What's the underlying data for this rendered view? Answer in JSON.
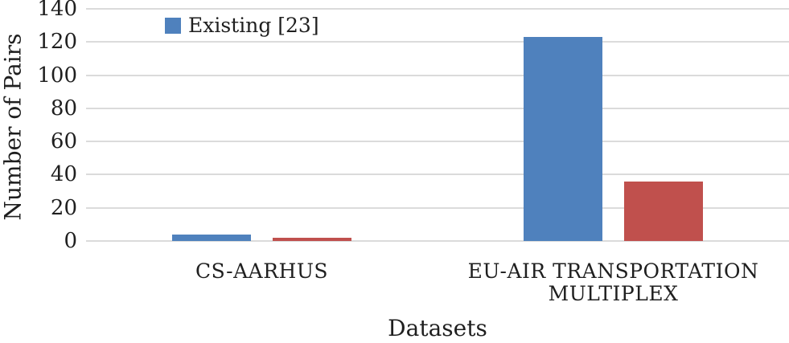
{
  "figure": {
    "background": "#FFFFFF",
    "text_color": "#1F1F1F",
    "gridline_color": "#DBDBDB"
  },
  "chart_data": {
    "type": "bar",
    "xlabel": "Datasets",
    "ylabel": "Number of Pairs",
    "categories": [
      "CS-AARHUS",
      "EU-AIR TRANSPORTATION MULTIPLEX"
    ],
    "series": [
      {
        "name": "Existing [23]",
        "color": "#4F81BD",
        "values": [
          4,
          123
        ],
        "in_legend": true
      },
      {
        "name": "",
        "color": "#C0504D",
        "values": [
          2,
          36
        ],
        "in_legend": false
      }
    ],
    "legend": [
      {
        "label": "Existing [23]",
        "color": "#4F81BD"
      }
    ],
    "legend_position": "top-left",
    "ylim": [
      0,
      140
    ],
    "yticks": [
      0,
      20,
      40,
      60,
      80,
      100,
      120,
      140
    ],
    "grid": "horizontal"
  }
}
